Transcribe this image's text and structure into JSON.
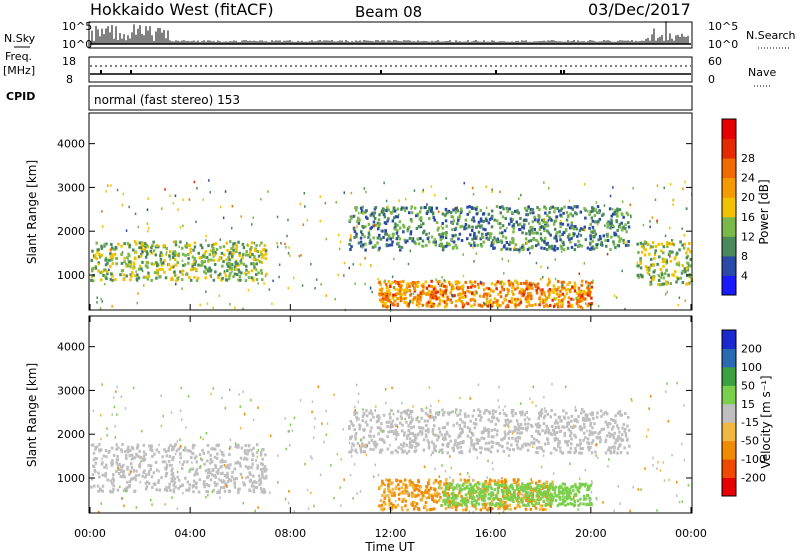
{
  "header": {
    "radar": "Hokkaido West (fitACF)",
    "beam": "Beam 08",
    "date": "03/Dec/2017"
  },
  "noise_panel": {
    "left_label": "N.Sky",
    "right_label": "N.Search",
    "ticks_left": [
      "10^5",
      "10^0"
    ],
    "ticks_right": [
      "10^5",
      "10^0"
    ]
  },
  "freq_panel": {
    "left_label_1": "Freq.",
    "left_label_2": "[MHz]",
    "right_label": "Nave",
    "ticks_left": [
      "18",
      "8"
    ],
    "ticks_right": [
      "60",
      "0"
    ]
  },
  "cpid_panel": {
    "label": "CPID",
    "mode": "normal (fast stereo) 153"
  },
  "colors": {
    "power_scale": [
      "#1a1aff",
      "#2a4aa8",
      "#4a8a5a",
      "#7ab84a",
      "#f2c200",
      "#f59a00",
      "#f06a00",
      "#e62a00",
      "#e60000"
    ],
    "velocity_scale": [
      "#e60000",
      "#f04a00",
      "#f08a00",
      "#f0b840",
      "#bfbfbf",
      "#7ad04a",
      "#3aa040",
      "#2a6ab0",
      "#1a2ad0"
    ],
    "ground_scatter": "#bfbfbf"
  },
  "chart_data": [
    {
      "type": "heatmap",
      "name_hint": "power",
      "ylabel": "Slant Range [km]",
      "yticks": [
        "1000",
        "2000",
        "3000",
        "4000"
      ],
      "ylim": [
        200,
        4700
      ],
      "xlim": [
        "00:00",
        "24:00"
      ],
      "colorbar_label": "Power [dB]",
      "colorbar_ticks": [
        "4",
        "8",
        "12",
        "16",
        "20",
        "24",
        "28"
      ],
      "features": [
        {
          "time": [
            0.0,
            7.0
          ],
          "range_km": [
            900,
            1800
          ],
          "power_db": [
            8,
            20
          ]
        },
        {
          "time": [
            10.3,
            21.5
          ],
          "range_km": [
            1600,
            2600
          ],
          "power_db": [
            4,
            16
          ]
        },
        {
          "time": [
            11.5,
            20.0
          ],
          "range_km": [
            300,
            900
          ],
          "power_db": [
            16,
            30
          ]
        },
        {
          "time": [
            21.8,
            24.0
          ],
          "range_km": [
            800,
            1800
          ],
          "power_db": [
            8,
            20
          ]
        }
      ]
    },
    {
      "type": "heatmap",
      "name_hint": "velocity",
      "ylabel": "Slant Range [km]",
      "yticks": [
        "1000",
        "2000",
        "3000",
        "4000"
      ],
      "ylim": [
        200,
        4700
      ],
      "xlabel": "Time UT",
      "xticks": [
        "00:00",
        "04:00",
        "08:00",
        "12:00",
        "16:00",
        "20:00",
        "00:00"
      ],
      "colorbar_label": "Velocity [m s⁻¹]",
      "colorbar_ticks": [
        "200",
        "100",
        "50",
        "15",
        "-15",
        "-50",
        "-100",
        "-200"
      ],
      "features": [
        {
          "time": [
            0.0,
            7.0
          ],
          "range_km": [
            700,
            1800
          ],
          "velocity_ms": [
            -15,
            15
          ]
        },
        {
          "time": [
            10.3,
            21.5
          ],
          "range_km": [
            1600,
            2600
          ],
          "velocity_ms": [
            -15,
            15
          ]
        },
        {
          "time": [
            11.5,
            18.5
          ],
          "range_km": [
            300,
            1000
          ],
          "velocity_ms": [
            -100,
            -15
          ]
        },
        {
          "time": [
            14.0,
            20.0
          ],
          "range_km": [
            400,
            900
          ],
          "velocity_ms": [
            15,
            50
          ]
        }
      ]
    }
  ]
}
